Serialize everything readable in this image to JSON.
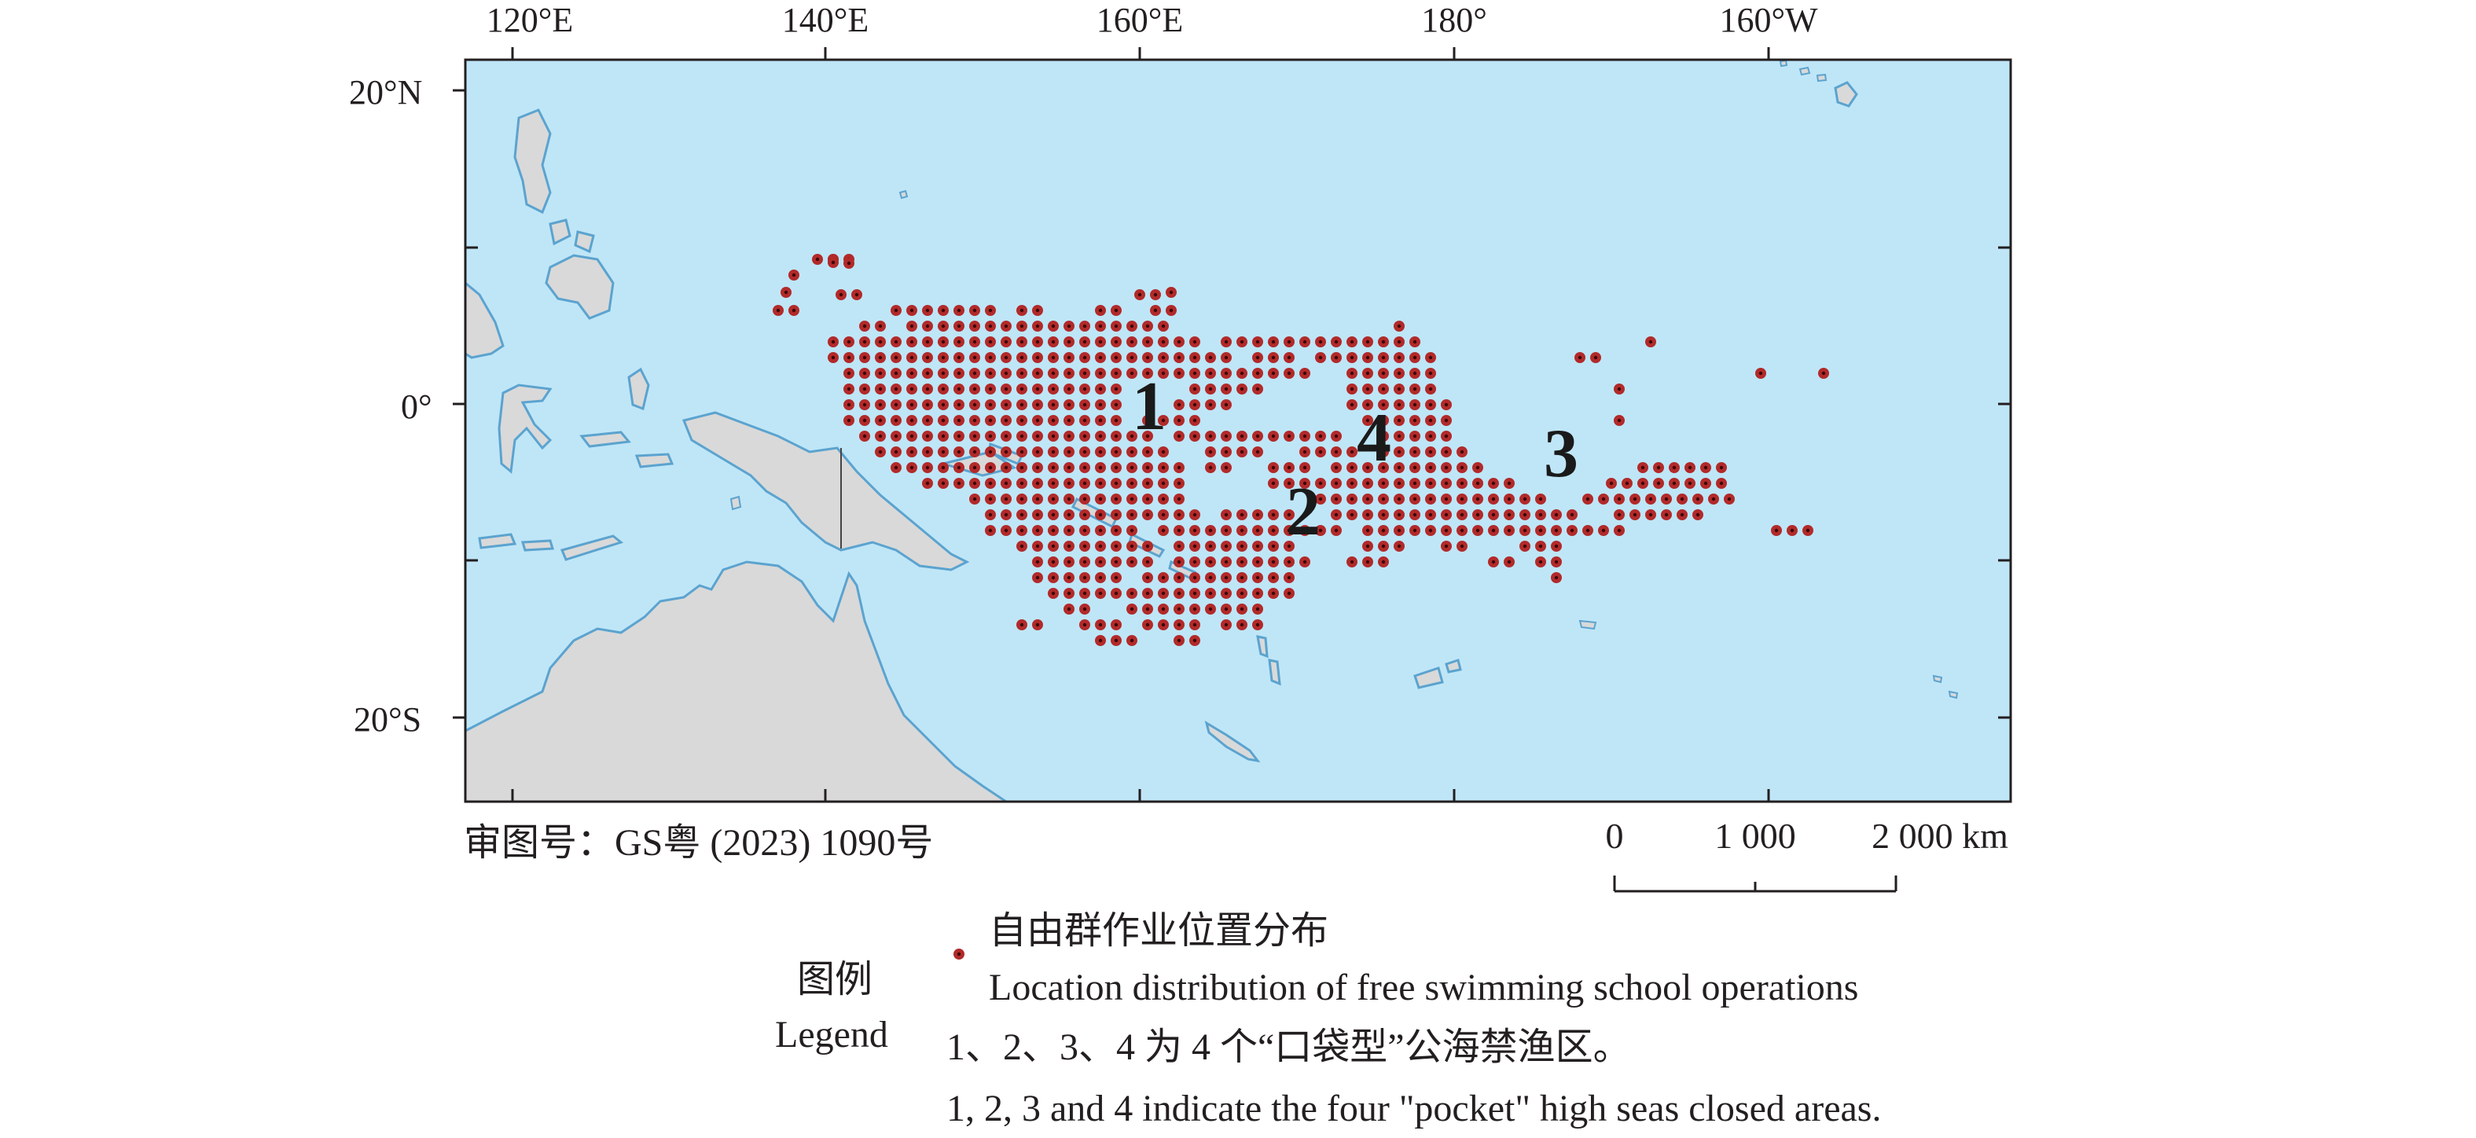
{
  "map": {
    "lon_labels": [
      "120°E",
      "140°E",
      "160°E",
      "180°",
      "160°W"
    ],
    "lat_labels": [
      "20°N",
      "0°",
      "20°S"
    ],
    "pocket_area_numbers": [
      "1",
      "2",
      "3",
      "4"
    ],
    "review_number": "审图号：GS粤 (2023) 1090号",
    "scale_bar": {
      "labels": [
        "0",
        "1 000",
        "2 000 km"
      ]
    },
    "colors": {
      "ocean": "#bfe6f7",
      "land": "#d9d9d9",
      "coast": "#5ba3cf",
      "point": "#b22a2a"
    }
  },
  "legend": {
    "title_cn": "图例",
    "title_en": "Legend",
    "point_label_cn": "自由群作业位置分布",
    "point_label_en": "Location distribution of free swimming school operations",
    "areas_note_cn": "1、2、3、4 为 4 个“口袋型”公海禁渔区。",
    "areas_note_en": "1, 2, 3 and 4 indicate the four \"pocket\" high seas closed areas."
  }
}
